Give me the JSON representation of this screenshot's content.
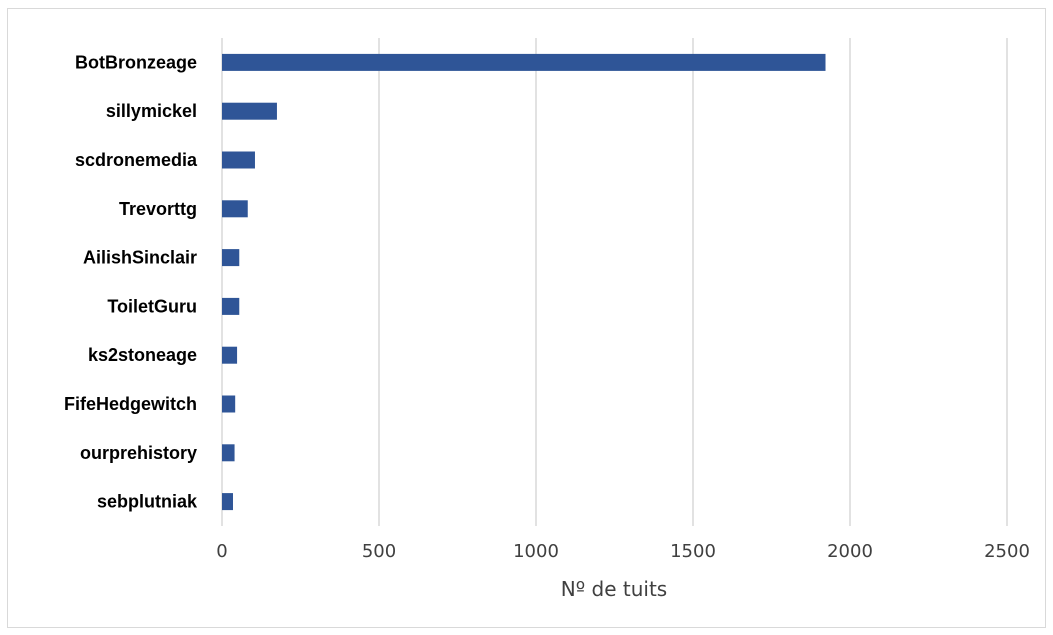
{
  "chart_data": {
    "type": "bar",
    "orientation": "horizontal",
    "categories": [
      "BotBronzeage",
      "sillymickel",
      "scdronemedia",
      "Trevorttg",
      "AilishSinclair",
      "ToiletGuru",
      "ks2stoneage",
      "FifeHedgewitch",
      "ourprehistory",
      "sebplutniak"
    ],
    "values": [
      1922,
      175,
      105,
      82,
      55,
      55,
      48,
      42,
      40,
      35
    ],
    "xlabel": "Nº de tuits",
    "ylabel": "",
    "xlim": [
      0,
      2500
    ],
    "xticks": [
      "0",
      "500",
      "1000",
      "1500",
      "2000",
      "2500"
    ],
    "grid": true,
    "legend": "none",
    "colors": {
      "bar": "#2f5597",
      "grid": "#d9d9d9",
      "text": "#404040"
    }
  }
}
